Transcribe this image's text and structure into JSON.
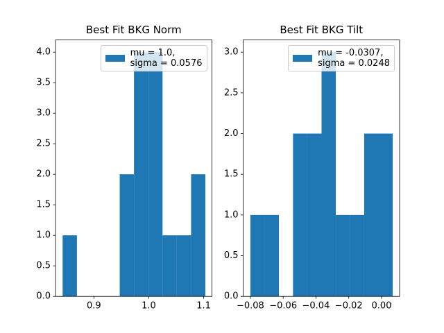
{
  "chart_data": [
    {
      "type": "histogram",
      "title": "Best Fit BKG Norm",
      "bins": [
        0.843,
        0.869,
        0.895,
        0.921,
        0.947,
        0.973,
        0.999,
        1.025,
        1.051,
        1.077,
        1.103
      ],
      "series": [
        {
          "name": "mu = 1.0,\nsigma = 0.0576",
          "color": "#1f77b4",
          "values": [
            1,
            0,
            0,
            0,
            2,
            4,
            4,
            1,
            1,
            2
          ]
        }
      ],
      "xlim": [
        0.83,
        1.115
      ],
      "xticks": [
        0.9,
        {
          "value": 1.0,
          "label": "1.0"
        },
        1.1
      ],
      "ylim": [
        0,
        4.2
      ],
      "yticks": [
        {
          "value": 0,
          "label": "0.0"
        },
        0.5,
        {
          "value": 1,
          "label": "1.0"
        },
        1.5,
        {
          "value": 2,
          "label": "2.0"
        },
        2.5,
        {
          "value": 3,
          "label": "3.0"
        },
        3.5,
        {
          "value": 4,
          "label": "4.0"
        }
      ],
      "legend": "upper right"
    },
    {
      "type": "histogram",
      "title": "Best Fit BKG Tilt",
      "bins": [
        -0.08,
        -0.0713,
        -0.0626,
        -0.054,
        -0.0453,
        -0.0366,
        -0.0279,
        -0.0192,
        -0.0106,
        -0.0019,
        0.0068
      ],
      "series": [
        {
          "name": "mu = -0.0307,\nsigma = 0.0248",
          "color": "#1f77b4",
          "values": [
            1,
            1,
            0,
            2,
            2,
            3,
            1,
            1,
            2,
            2
          ]
        }
      ],
      "xlim": [
        -0.0844,
        0.011
      ],
      "xticks": [
        {
          "value": -0.08,
          "label": "−0.08"
        },
        {
          "value": -0.06,
          "label": "−0.06"
        },
        {
          "value": -0.04,
          "label": "−0.04"
        },
        {
          "value": -0.02,
          "label": "−0.02"
        },
        {
          "value": 0,
          "label": "0.00"
        }
      ],
      "ylim": [
        0,
        3.15
      ],
      "yticks": [
        {
          "value": 0,
          "label": "0.0"
        },
        0.5,
        {
          "value": 1,
          "label": "1.0"
        },
        1.5,
        {
          "value": 2,
          "label": "2.0"
        },
        2.5,
        {
          "value": 3,
          "label": "3.0"
        }
      ],
      "legend": "upper right"
    }
  ]
}
